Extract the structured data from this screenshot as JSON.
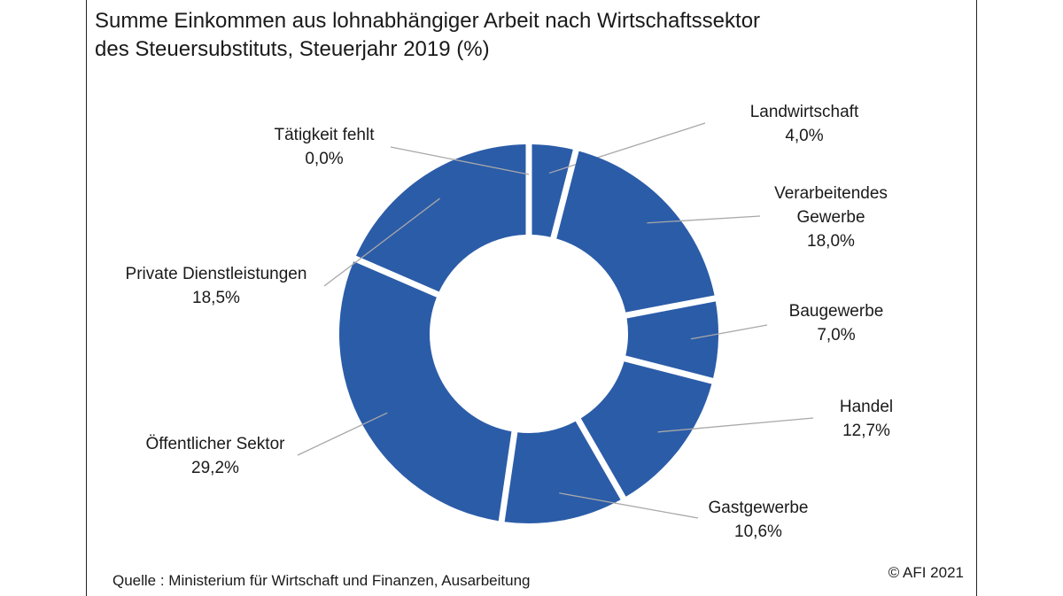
{
  "title_line1": "Summe Einkommen aus lohnabhängiger Arbeit nach Wirtschaftssektor",
  "title_line2": "des Steuersubstituts, Steuerjahr 2019 (%)",
  "source": "Quelle : Ministerium für Wirtschaft und Finanzen, Ausarbeitung",
  "copyright": "© AFI 2021",
  "colors": {
    "slice": "#2b5ca8",
    "leader": "#a8a8a8",
    "gap": "#ffffff"
  },
  "chart_data": {
    "type": "pie",
    "variant": "donut",
    "title": "Summe Einkommen aus lohnabhängiger Arbeit nach Wirtschaftssektor des Steuersubstituts, Steuerjahr 2019 (%)",
    "unit": "%",
    "slices": [
      {
        "label": "Landwirtschaft",
        "label_lines": [
          "Landwirtschaft"
        ],
        "value": 4.0,
        "value_text": "4,0%"
      },
      {
        "label": "Verarbeitendes Gewerbe",
        "label_lines": [
          "Verarbeitendes",
          "Gewerbe"
        ],
        "value": 18.0,
        "value_text": "18,0%"
      },
      {
        "label": "Baugewerbe",
        "label_lines": [
          "Baugewerbe"
        ],
        "value": 7.0,
        "value_text": "7,0%"
      },
      {
        "label": "Handel",
        "label_lines": [
          "Handel"
        ],
        "value": 12.7,
        "value_text": "12,7%"
      },
      {
        "label": "Gastgewerbe",
        "label_lines": [
          "Gastgewerbe"
        ],
        "value": 10.6,
        "value_text": "10,6%"
      },
      {
        "label": "Öffentlicher Sektor",
        "label_lines": [
          "Öffentlicher Sektor"
        ],
        "value": 29.2,
        "value_text": "29,2%"
      },
      {
        "label": "Private Dienstleistungen",
        "label_lines": [
          "Private Dienstleistungen"
        ],
        "value": 18.5,
        "value_text": "18,5%"
      },
      {
        "label": "Tätigkeit fehlt",
        "label_lines": [
          "Tätigkeit fehlt"
        ],
        "value": 0.0,
        "value_text": "0,0%"
      }
    ],
    "start_angle": "top",
    "direction": "clockwise",
    "legend": "none"
  }
}
